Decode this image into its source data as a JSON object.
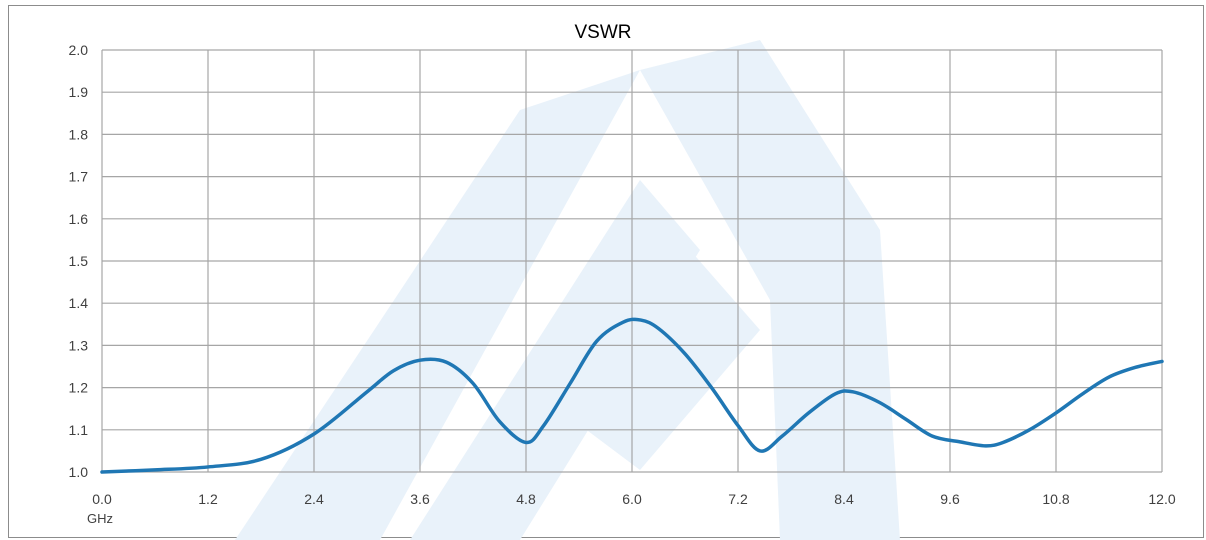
{
  "chart_data": {
    "type": "line",
    "title": "VSWR",
    "xlabel": "GHz",
    "ylabel": "",
    "xlim": [
      0.0,
      12.0
    ],
    "ylim": [
      1.0,
      2.0
    ],
    "x_ticks": [
      "0.0",
      "1.2",
      "2.4",
      "3.6",
      "4.8",
      "6.0",
      "7.2",
      "8.4",
      "9.6",
      "10.8",
      "12.0"
    ],
    "y_ticks": [
      "1.0",
      "1.1",
      "1.2",
      "1.3",
      "1.4",
      "1.5",
      "1.6",
      "1.7",
      "1.8",
      "1.9",
      "2.0"
    ],
    "grid": true,
    "legend": "none",
    "series": [
      {
        "color": "#1f77b4",
        "x": [
          0.0,
          0.6,
          1.2,
          1.8,
          2.4,
          3.0,
          3.3,
          3.6,
          3.9,
          4.2,
          4.5,
          4.8,
          5.0,
          5.3,
          5.6,
          5.9,
          6.1,
          6.3,
          6.6,
          6.9,
          7.2,
          7.45,
          7.7,
          8.0,
          8.3,
          8.5,
          8.8,
          9.1,
          9.4,
          9.7,
          10.0,
          10.2,
          10.5,
          10.8,
          11.1,
          11.4,
          11.7,
          12.0
        ],
        "y": [
          1.0,
          1.005,
          1.012,
          1.03,
          1.09,
          1.19,
          1.24,
          1.265,
          1.26,
          1.21,
          1.12,
          1.07,
          1.11,
          1.21,
          1.31,
          1.355,
          1.36,
          1.34,
          1.28,
          1.2,
          1.11,
          1.05,
          1.085,
          1.14,
          1.185,
          1.19,
          1.165,
          1.125,
          1.085,
          1.072,
          1.062,
          1.07,
          1.1,
          1.14,
          1.185,
          1.225,
          1.248,
          1.262
        ]
      }
    ]
  }
}
